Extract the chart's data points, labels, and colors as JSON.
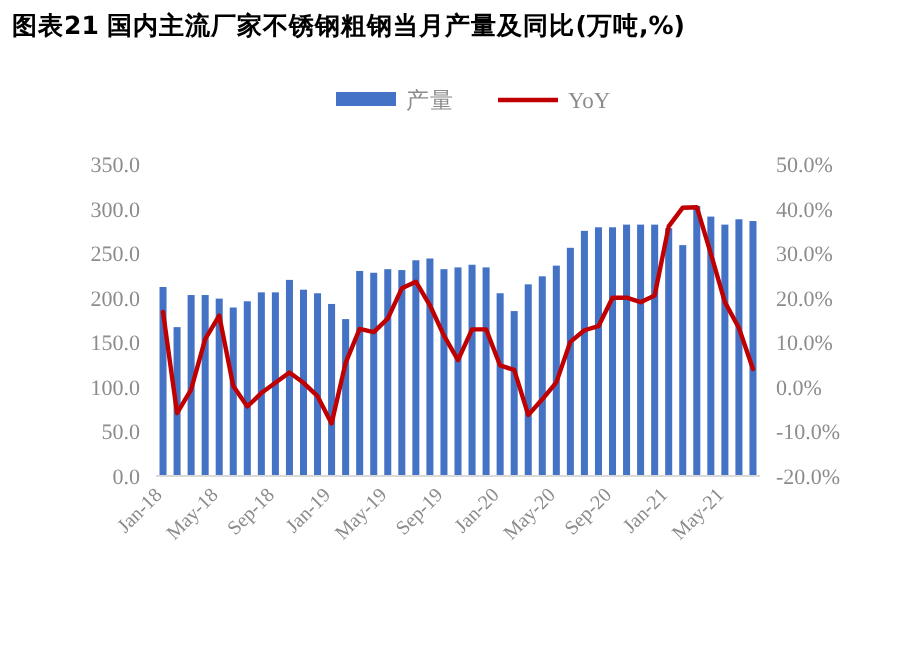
{
  "chart_data": {
    "type": "bar",
    "title": "图表21 国内主流厂家不锈钢粗钢当月产量及同比(万吨,%)",
    "legend": "top",
    "categories": [
      "Jan-18",
      null,
      null,
      null,
      "May-18",
      null,
      null,
      null,
      "Sep-18",
      null,
      null,
      null,
      "Jan-19",
      null,
      null,
      null,
      "May-19",
      null,
      null,
      null,
      "Sep-19",
      null,
      null,
      null,
      "Jan-20",
      null,
      null,
      null,
      "May-20",
      null,
      null,
      null,
      "Sep-20",
      null,
      null,
      null,
      "Jan-21",
      null,
      null,
      null,
      "May-21",
      null,
      null
    ],
    "series": [
      {
        "name": "产量",
        "color": "#4472c4",
        "values": [
          212,
          167,
          203,
          203,
          199,
          189,
          196,
          206,
          206,
          220,
          209,
          205,
          193,
          176,
          230,
          228,
          232,
          231,
          242,
          244,
          232,
          234,
          237,
          234,
          205,
          185,
          215,
          224,
          236,
          256,
          275,
          279,
          279,
          282,
          282,
          282,
          278,
          259,
          303,
          291,
          282,
          288,
          286
        ]
      },
      {
        "name": "YoY",
        "type": "line",
        "axis": "y2",
        "color": "#c00000",
        "values": [
          16.8,
          -5.9,
          -0.6,
          10.7,
          16.0,
          0.2,
          -4.4,
          -1.4,
          0.9,
          3.2,
          0.9,
          -2.1,
          -8.2,
          5.4,
          13.0,
          12.3,
          15.3,
          22.1,
          23.6,
          18.3,
          11.5,
          6.0,
          12.9,
          12.9,
          4.8,
          3.8,
          -6.3,
          -2.8,
          1.0,
          10.1,
          12.7,
          13.6,
          20.0,
          20.0,
          19.0,
          20.5,
          36.0,
          40.2,
          40.3,
          29.9,
          19.0,
          13.2,
          4.0
        ]
      }
    ],
    "ylim": [
      0,
      350
    ],
    "yticks": [
      {
        "value": 0,
        "label": "0.0"
      },
      {
        "value": 50,
        "label": "50.0"
      },
      {
        "value": 100,
        "label": "100.0"
      },
      {
        "value": 150,
        "label": "150.0"
      },
      {
        "value": 200,
        "label": "200.0"
      },
      {
        "value": 250,
        "label": "250.0"
      },
      {
        "value": 300,
        "label": "300.0"
      },
      {
        "value": 350,
        "label": "350.0"
      }
    ],
    "y2lim": [
      -20,
      50
    ],
    "y2ticks": [
      {
        "value": -20,
        "label": "-20.0%"
      },
      {
        "value": -10,
        "label": "-10.0%"
      },
      {
        "value": 0,
        "label": "0.0%"
      },
      {
        "value": 10,
        "label": "10.0%"
      },
      {
        "value": 20,
        "label": "20.0%"
      },
      {
        "value": 30,
        "label": "30.0%"
      },
      {
        "value": 40,
        "label": "40.0%"
      },
      {
        "value": 50,
        "label": "50.0%"
      }
    ]
  }
}
